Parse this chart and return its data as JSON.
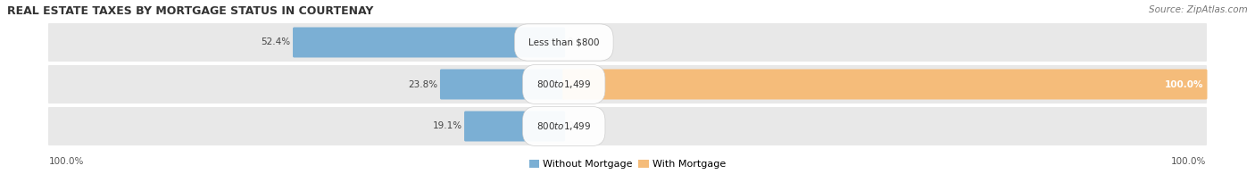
{
  "title": "REAL ESTATE TAXES BY MORTGAGE STATUS IN COURTENAY",
  "source": "Source: ZipAtlas.com",
  "rows": [
    {
      "without_pct": 52.4,
      "with_pct": 0.0,
      "label": "Less than $800"
    },
    {
      "without_pct": 23.8,
      "with_pct": 100.0,
      "label": "$800 to $1,499"
    },
    {
      "without_pct": 19.1,
      "with_pct": 0.0,
      "label": "$800 to $1,499"
    }
  ],
  "color_without": "#7BAFD4",
  "color_with": "#F5BC7A",
  "row_bg": "#E8E8E8",
  "fig_bg": "#FFFFFF",
  "left_axis_label": "100.0%",
  "right_axis_label": "100.0%",
  "legend_without": "Without Mortgage",
  "legend_with": "With Mortgage",
  "title_fontsize": 9,
  "source_fontsize": 7.5,
  "pct_fontsize": 7.5,
  "label_fontsize": 7.5
}
